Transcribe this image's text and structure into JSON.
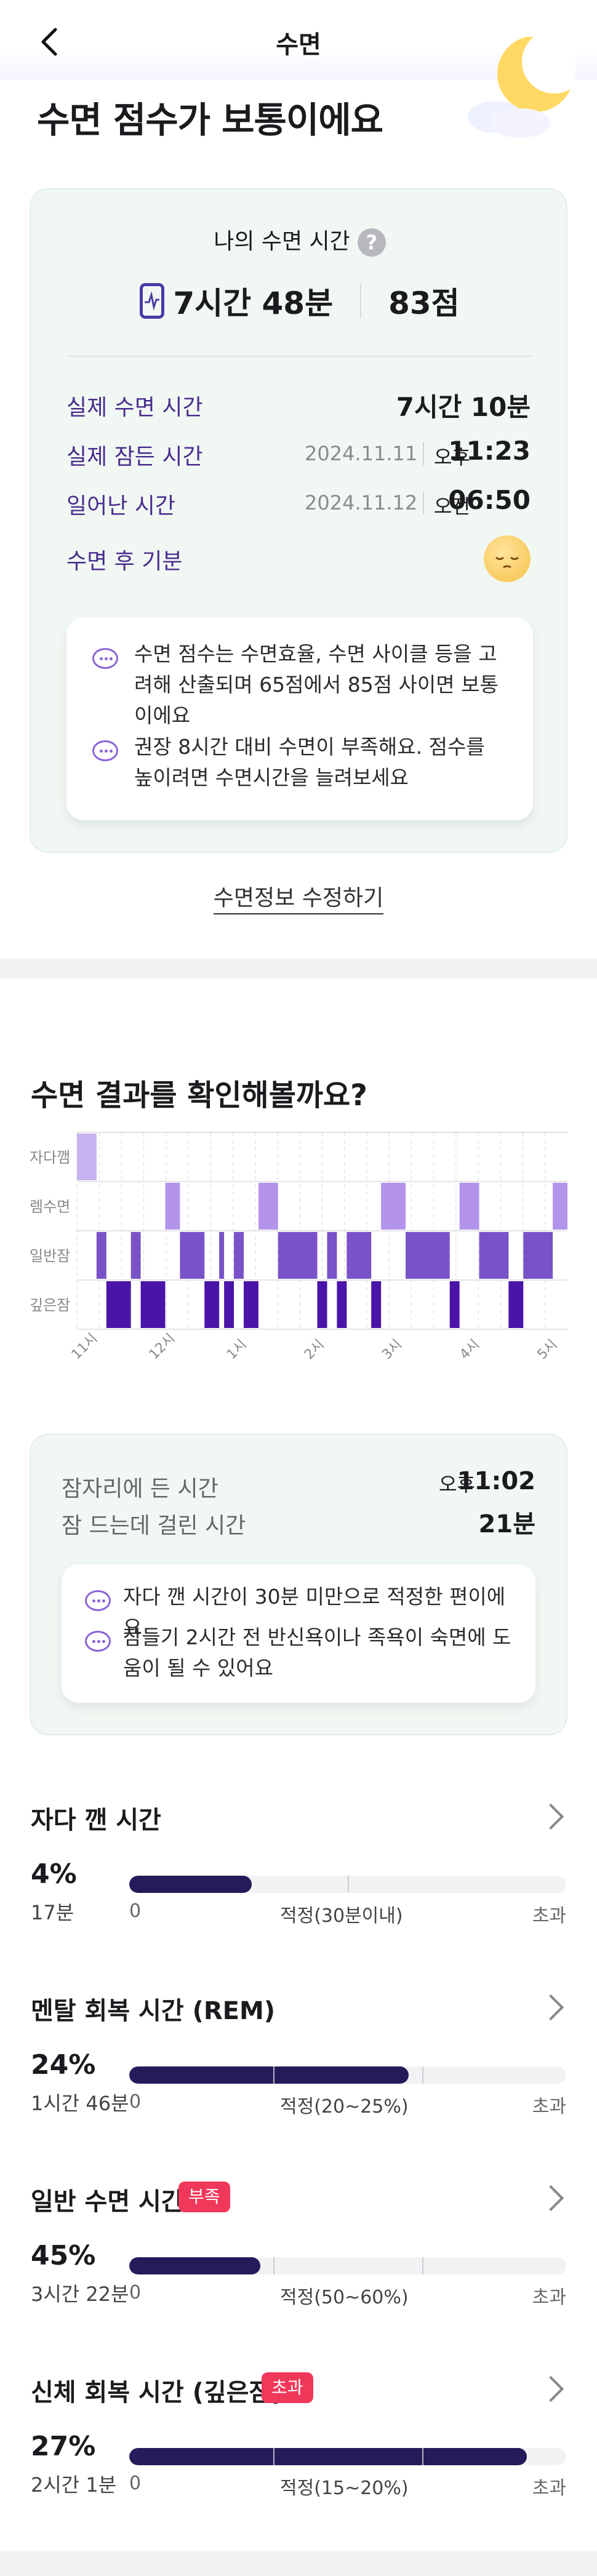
{
  "header": {
    "title": "수면"
  },
  "headline": "수면 점수가 보통이에요",
  "summary": {
    "my_sleep_label": "나의 수면 시간",
    "help": "?",
    "total_time": "7시간 48분",
    "score": "83점",
    "rows": {
      "actual_label": "실제 수면 시간",
      "actual_value": "7시간 10분",
      "fell_asleep_label": "실제 잠든 시간",
      "fell_asleep_date": "2024.11.11",
      "fell_asleep_ampm": "오후",
      "fell_asleep_time": "11:23",
      "woke_label": "일어난 시간",
      "woke_date": "2024.11.12",
      "woke_ampm": "오전",
      "woke_time": "06:50",
      "mood_label": "수면 후 기분"
    },
    "tips": [
      "수면 점수는 수면효율, 수면 사이클 등을 고려해 산출되며 65점에서 85점 사이면 보통이에요",
      "권장 8시간 대비 수면이 부족해요. 점수를 높이려면 수면시간을 늘려보세요"
    ]
  },
  "edit_link": "수면정보 수정하기",
  "results": {
    "title": "수면 결과를 확인해볼까요?",
    "bed_label": "잠자리에 든 시간",
    "bed_ampm": "오후",
    "bed_time": "11:02",
    "latency_label": "잠 드는데 걸린 시간",
    "latency_value": "21분",
    "tips": [
      "자다 깬 시간이 30분 미만으로 적정한 편이에요",
      "잠들기 2시간 전 반신욕이나 족욕이 숙면에 도움이 될 수 있어요"
    ]
  },
  "chart_data": {
    "type": "heatmap",
    "rows": [
      "자다깸",
      "렘수면",
      "일반잠",
      "깊은잠"
    ],
    "x_ticks": [
      "11시",
      "12시",
      "1시",
      "2시",
      "3시",
      "4시",
      "5시"
    ],
    "segments": [
      {
        "stage": "자다깸",
        "start": 0.0,
        "end": 0.04
      },
      {
        "stage": "일반잠",
        "start": 0.04,
        "end": 0.06
      },
      {
        "stage": "깊은잠",
        "start": 0.06,
        "end": 0.11
      },
      {
        "stage": "일반잠",
        "start": 0.11,
        "end": 0.13
      },
      {
        "stage": "깊은잠",
        "start": 0.13,
        "end": 0.18
      },
      {
        "stage": "렘수면",
        "start": 0.18,
        "end": 0.21
      },
      {
        "stage": "일반잠",
        "start": 0.21,
        "end": 0.26
      },
      {
        "stage": "깊은잠",
        "start": 0.26,
        "end": 0.29
      },
      {
        "stage": "일반잠",
        "start": 0.29,
        "end": 0.3
      },
      {
        "stage": "깊은잠",
        "start": 0.3,
        "end": 0.32
      },
      {
        "stage": "일반잠",
        "start": 0.32,
        "end": 0.34
      },
      {
        "stage": "깊은잠",
        "start": 0.34,
        "end": 0.37
      },
      {
        "stage": "렘수면",
        "start": 0.37,
        "end": 0.41
      },
      {
        "stage": "일반잠",
        "start": 0.41,
        "end": 0.49
      },
      {
        "stage": "깊은잠",
        "start": 0.49,
        "end": 0.51
      },
      {
        "stage": "일반잠",
        "start": 0.51,
        "end": 0.53
      },
      {
        "stage": "깊은잠",
        "start": 0.53,
        "end": 0.55
      },
      {
        "stage": "일반잠",
        "start": 0.55,
        "end": 0.6
      },
      {
        "stage": "깊은잠",
        "start": 0.6,
        "end": 0.62
      },
      {
        "stage": "렘수면",
        "start": 0.62,
        "end": 0.67
      },
      {
        "stage": "일반잠",
        "start": 0.67,
        "end": 0.76
      },
      {
        "stage": "깊은잠",
        "start": 0.76,
        "end": 0.78
      },
      {
        "stage": "렘수면",
        "start": 0.78,
        "end": 0.82
      },
      {
        "stage": "일반잠",
        "start": 0.82,
        "end": 0.88
      },
      {
        "stage": "깊은잠",
        "start": 0.88,
        "end": 0.91
      },
      {
        "stage": "일반잠",
        "start": 0.91,
        "end": 0.97
      },
      {
        "stage": "렘수면",
        "start": 0.97,
        "end": 1.0
      }
    ],
    "colors": {
      "자다깸": "#c7b3f0",
      "렘수면": "#b394ea",
      "일반잠": "#7a52c7",
      "깊은잠": "#4a14a8"
    }
  },
  "stages": [
    {
      "title": "자다 깬 시간",
      "percent": "4%",
      "duration": "17분",
      "zero": "0",
      "range_label": "적정(30분이내)",
      "over": "초과",
      "badge": "",
      "fill": 0.28,
      "ticks": [
        0.5
      ]
    },
    {
      "title": "멘탈 회복 시간 (REM)",
      "percent": "24%",
      "duration": "1시간 46분",
      "zero": "0",
      "range_label": "적정(20~25%)",
      "over": "초과",
      "badge": "",
      "fill": 0.64,
      "ticks": [
        0.33,
        0.67
      ]
    },
    {
      "title": "일반 수면 시간",
      "percent": "45%",
      "duration": "3시간 22분",
      "zero": "0",
      "range_label": "적정(50~60%)",
      "over": "초과",
      "badge": "부족",
      "fill": 0.3,
      "ticks": [
        0.33,
        0.67
      ]
    },
    {
      "title": "신체 회복 시간 (깊은잠)",
      "percent": "27%",
      "duration": "2시간 1분",
      "zero": "0",
      "range_label": "적정(15~20%)",
      "over": "초과",
      "badge": "초과",
      "fill": 0.91,
      "ticks": [
        0.33,
        0.67
      ]
    }
  ]
}
